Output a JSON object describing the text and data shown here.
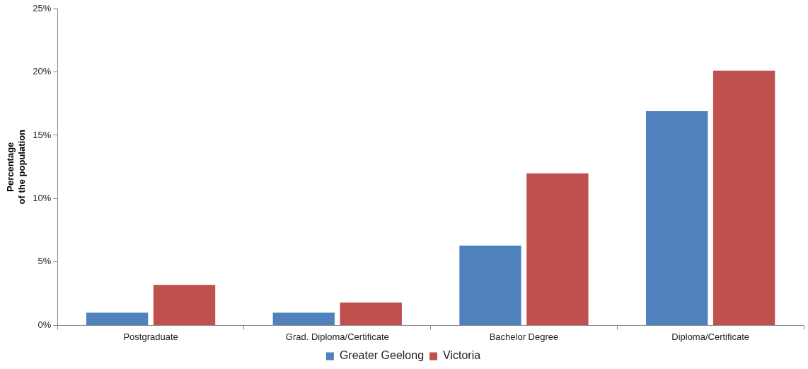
{
  "chart_data": {
    "type": "bar",
    "ylabel": "Percentage\nof the population",
    "categories": [
      "Postgraduate",
      "Grad. Diploma/Certificate",
      "Bachelor Degree",
      "Diploma/Certificate"
    ],
    "series": [
      {
        "name": "Greater Geelong",
        "color": "#4f81bd",
        "values": [
          1.0,
          1.0,
          6.3,
          16.9
        ]
      },
      {
        "name": "Victoria",
        "color": "#c0504d",
        "values": [
          3.2,
          1.8,
          12.0,
          20.1
        ]
      }
    ],
    "ylim": [
      0,
      25
    ],
    "yticks": [
      {
        "value": 0,
        "label": "0%"
      },
      {
        "value": 5,
        "label": "5%"
      },
      {
        "value": 10,
        "label": "10%"
      },
      {
        "value": 15,
        "label": "15%"
      },
      {
        "value": 20,
        "label": "20%"
      },
      {
        "value": 25,
        "label": "25%"
      }
    ],
    "grid": false,
    "legend": "bottom"
  }
}
